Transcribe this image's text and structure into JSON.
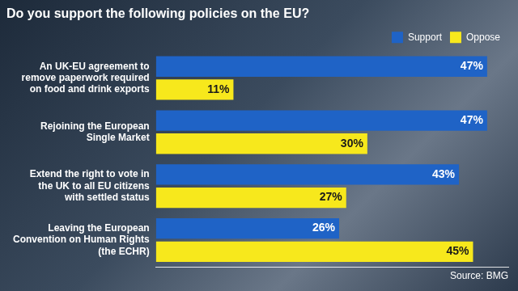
{
  "chart_data": {
    "type": "bar",
    "title": "Do you support the following policies on the EU?",
    "source": "Source: BMG",
    "orientation": "horizontal",
    "categories": [
      "An UK-EU agreement to remove paperwork required on food and drink exports",
      "Rejoining the European Single Market",
      "Extend the right to vote in the UK to all EU citizens with settled status",
      "Leaving the European Convention on Human Rights (the ECHR)"
    ],
    "series": [
      {
        "name": "Support",
        "color": "#1f63c6",
        "values": [
          47,
          47,
          43,
          26
        ],
        "value_labels": [
          "47%",
          "47%",
          "43%",
          "26%"
        ]
      },
      {
        "name": "Oppose",
        "color": "#f7e81c",
        "values": [
          11,
          30,
          27,
          45
        ],
        "value_labels": [
          "11%",
          "30%",
          "27%",
          "45%"
        ]
      }
    ],
    "xlim": [
      0,
      50
    ],
    "grid": false,
    "legend": "top-right",
    "data_labels": true,
    "tick_labels": "y"
  }
}
